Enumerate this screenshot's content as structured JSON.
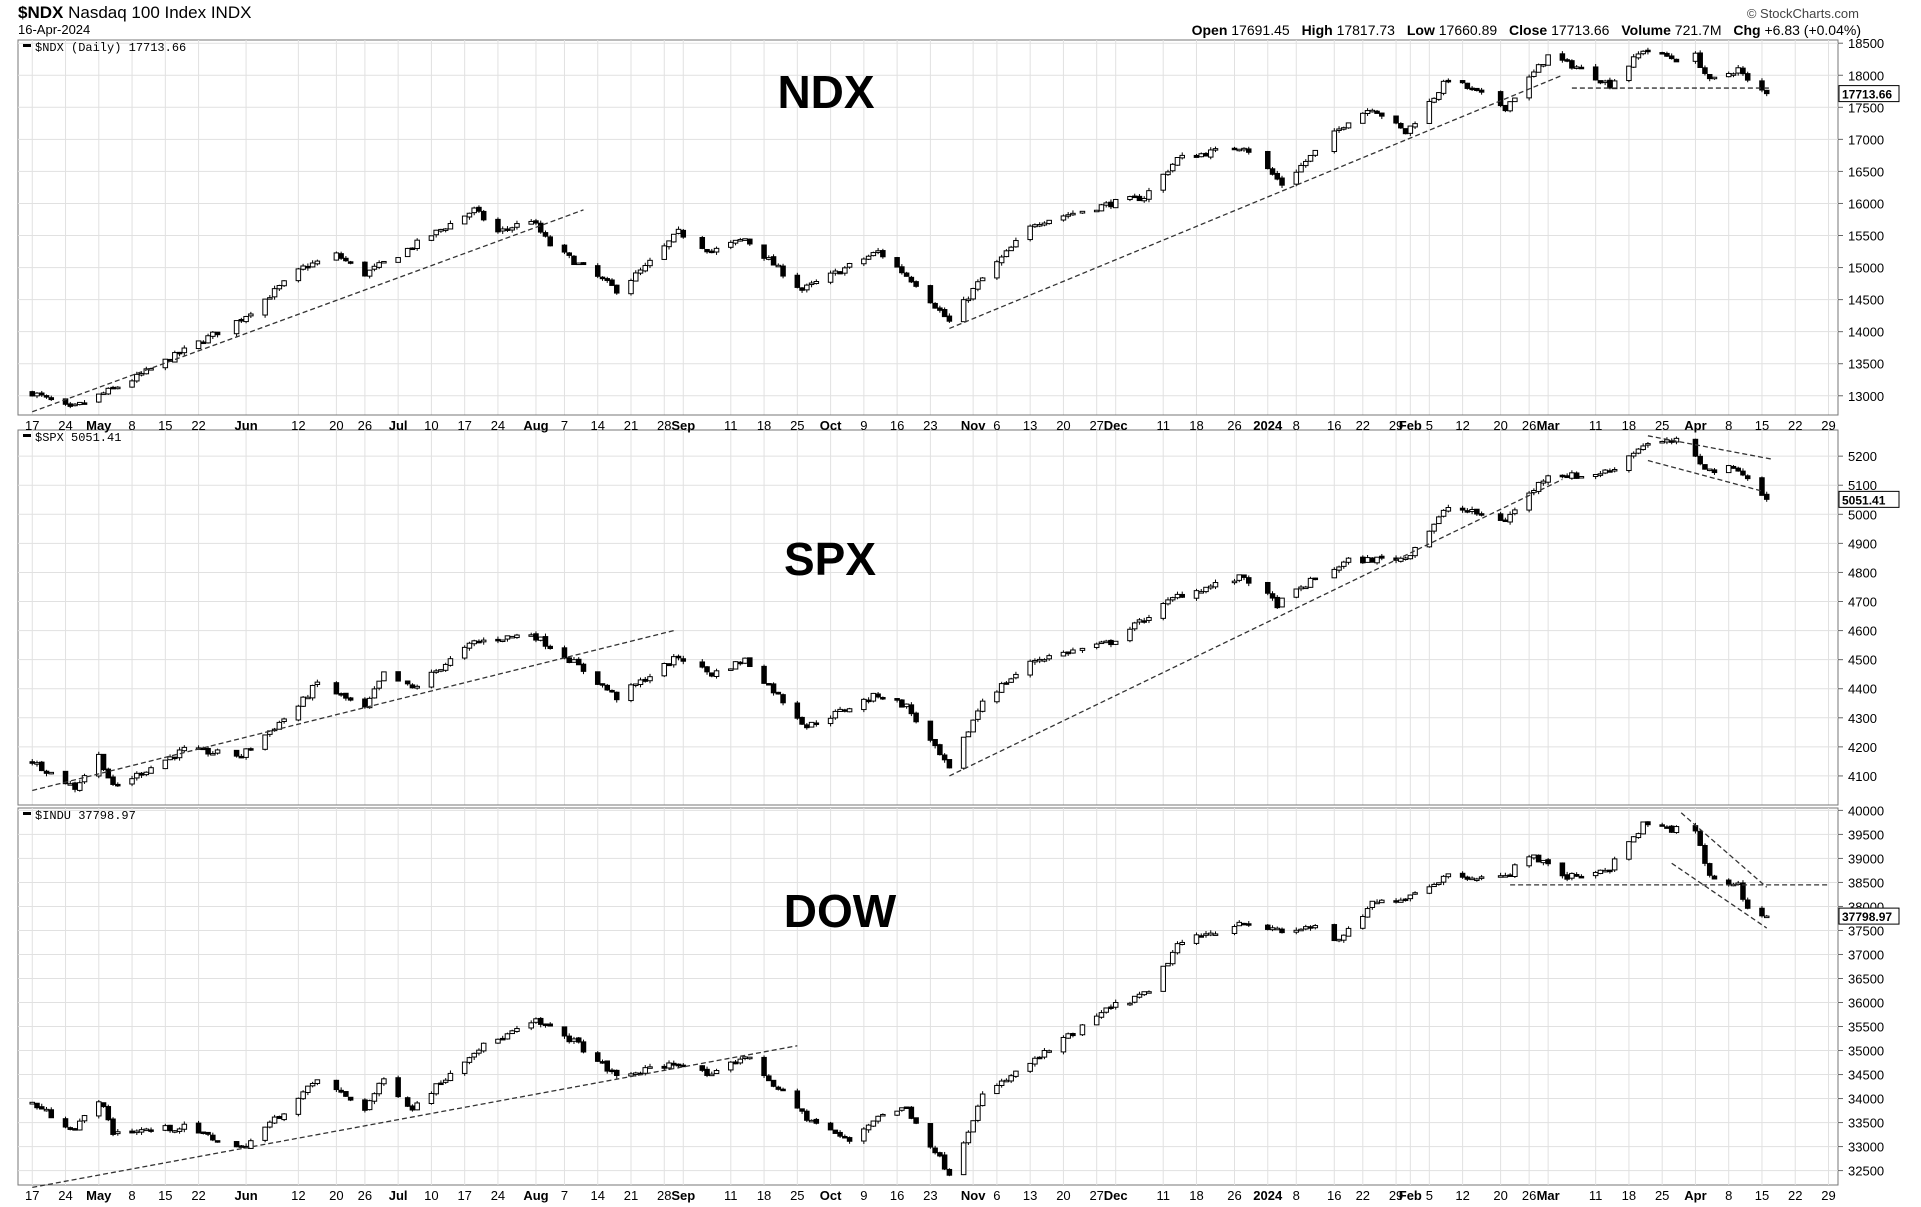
{
  "header": {
    "symbol": "$NDX",
    "name": "Nasdaq 100 Index",
    "exchange": "INDX",
    "date": "16-Apr-2024",
    "brand": "© StockCharts.com",
    "open_label": "Open",
    "open": "17691.45",
    "high_label": "High",
    "high": "17817.73",
    "low_label": "Low",
    "low": "17660.89",
    "close_label": "Close",
    "close": "17713.66",
    "volume_label": "Volume",
    "volume": "721.7M",
    "chg_label": "Chg",
    "chg": "+6.83 (+0.04%)"
  },
  "chart_data": [
    {
      "type": "candlestick",
      "panel_label": "$NDX (Daily) 17713.66",
      "title": "NDX",
      "last_price": "17713.66",
      "ylim": [
        12700,
        18550
      ],
      "yticks": [
        13000,
        13500,
        14000,
        14500,
        15000,
        15500,
        16000,
        16500,
        17000,
        17500,
        18000,
        18500
      ],
      "anchors": [
        [
          "2023-04-17",
          13050
        ],
        [
          "2023-04-25",
          12790
        ],
        [
          "2023-05-08",
          13250
        ],
        [
          "2023-05-31",
          14200
        ],
        [
          "2023-06-13",
          15000
        ],
        [
          "2023-06-20",
          15200
        ],
        [
          "2023-06-26",
          14900
        ],
        [
          "2023-07-03",
          15200
        ],
        [
          "2023-07-19",
          15900
        ],
        [
          "2023-07-24",
          15550
        ],
        [
          "2023-07-31",
          15750
        ],
        [
          "2023-08-04",
          15350
        ],
        [
          "2023-08-18",
          14650
        ],
        [
          "2023-08-24",
          15000
        ],
        [
          "2023-08-31",
          15550
        ],
        [
          "2023-09-07",
          15250
        ],
        [
          "2023-09-14",
          15450
        ],
        [
          "2023-09-26",
          14650
        ],
        [
          "2023-10-12",
          15250
        ],
        [
          "2023-10-20",
          14750
        ],
        [
          "2023-10-27",
          14150
        ],
        [
          "2023-11-02",
          14750
        ],
        [
          "2023-11-14",
          15700
        ],
        [
          "2023-11-30",
          16000
        ],
        [
          "2023-12-07",
          16100
        ],
        [
          "2023-12-14",
          16700
        ],
        [
          "2023-12-28",
          16900
        ],
        [
          "2024-01-05",
          16300
        ],
        [
          "2024-01-12",
          16800
        ],
        [
          "2024-01-19",
          17300
        ],
        [
          "2024-01-24",
          17500
        ],
        [
          "2024-01-31",
          17100
        ],
        [
          "2024-02-09",
          17950
        ],
        [
          "2024-02-21",
          17500
        ],
        [
          "2024-03-01",
          18300
        ],
        [
          "2024-03-08",
          18100
        ],
        [
          "2024-03-14",
          17850
        ],
        [
          "2024-03-21",
          18400
        ],
        [
          "2024-03-28",
          18250
        ],
        [
          "2024-04-01",
          18300
        ],
        [
          "2024-04-04",
          17900
        ],
        [
          "2024-04-10",
          18100
        ],
        [
          "2024-04-12",
          17900
        ],
        [
          "2024-04-16",
          17713.66
        ]
      ],
      "trendlines": [
        [
          [
            "2023-04-17",
            12750
          ],
          [
            "2023-08-11",
            15900
          ]
        ],
        [
          [
            "2023-10-27",
            14050
          ],
          [
            "2024-03-04",
            18000
          ]
        ],
        [
          [
            "2024-03-06",
            17800
          ],
          [
            "2024-04-17",
            17800
          ]
        ]
      ]
    },
    {
      "type": "candlestick",
      "panel_label": "$SPX 5051.41",
      "title": "SPX",
      "last_price": "5051.41",
      "ylim": [
        4000,
        5290
      ],
      "yticks": [
        4100,
        4200,
        4300,
        4400,
        4500,
        4600,
        4700,
        4800,
        4900,
        5000,
        5100,
        5200
      ],
      "anchors": [
        [
          "2023-04-17",
          4150
        ],
        [
          "2023-04-26",
          4060
        ],
        [
          "2023-05-01",
          4170
        ],
        [
          "2023-05-04",
          4060
        ],
        [
          "2023-05-19",
          4190
        ],
        [
          "2023-05-31",
          4170
        ],
        [
          "2023-06-12",
          4340
        ],
        [
          "2023-06-16",
          4420
        ],
        [
          "2023-06-26",
          4330
        ],
        [
          "2023-06-30",
          4450
        ],
        [
          "2023-07-06",
          4400
        ],
        [
          "2023-07-19",
          4560
        ],
        [
          "2023-07-31",
          4590
        ],
        [
          "2023-08-09",
          4490
        ],
        [
          "2023-08-18",
          4370
        ],
        [
          "2023-08-31",
          4510
        ],
        [
          "2023-09-07",
          4450
        ],
        [
          "2023-09-14",
          4500
        ],
        [
          "2023-09-27",
          4270
        ],
        [
          "2023-10-12",
          4380
        ],
        [
          "2023-10-18",
          4340
        ],
        [
          "2023-10-27",
          4120
        ],
        [
          "2023-11-03",
          4360
        ],
        [
          "2023-11-14",
          4500
        ],
        [
          "2023-11-30",
          4560
        ],
        [
          "2023-12-14",
          4720
        ],
        [
          "2023-12-28",
          4785
        ],
        [
          "2024-01-04",
          4690
        ],
        [
          "2024-01-12",
          4780
        ],
        [
          "2024-01-19",
          4840
        ],
        [
          "2024-01-31",
          4850
        ],
        [
          "2024-02-09",
          5025
        ],
        [
          "2024-02-21",
          4980
        ],
        [
          "2024-03-01",
          5140
        ],
        [
          "2024-03-08",
          5130
        ],
        [
          "2024-03-14",
          5150
        ],
        [
          "2024-03-21",
          5240
        ],
        [
          "2024-03-28",
          5250
        ],
        [
          "2024-04-04",
          5150
        ],
        [
          "2024-04-10",
          5160
        ],
        [
          "2024-04-12",
          5120
        ],
        [
          "2024-04-16",
          5051.41
        ]
      ],
      "trendlines": [
        [
          [
            "2023-04-17",
            4050
          ],
          [
            "2023-08-30",
            4600
          ]
        ],
        [
          [
            "2023-10-27",
            4100
          ],
          [
            "2024-03-04",
            5120
          ]
        ],
        [
          [
            "2024-03-22",
            5270
          ],
          [
            "2024-04-17",
            5190
          ]
        ],
        [
          [
            "2024-03-22",
            5185
          ],
          [
            "2024-04-15",
            5080
          ]
        ]
      ]
    },
    {
      "type": "candlestick",
      "panel_label": "$INDU 37798.97",
      "title": "DOW",
      "last_price": "37798.97",
      "ylim": [
        32200,
        40050
      ],
      "yticks": [
        32500,
        33000,
        33500,
        34000,
        34500,
        35000,
        35500,
        36000,
        36500,
        37000,
        37500,
        38000,
        38500,
        39000,
        39500,
        40000
      ],
      "anchors": [
        [
          "2023-04-17",
          33900
        ],
        [
          "2023-04-26",
          33350
        ],
        [
          "2023-05-01",
          34000
        ],
        [
          "2023-05-04",
          33300
        ],
        [
          "2023-05-19",
          33400
        ],
        [
          "2023-05-31",
          32950
        ],
        [
          "2023-06-12",
          34000
        ],
        [
          "2023-06-16",
          34400
        ],
        [
          "2023-06-26",
          33800
        ],
        [
          "2023-06-30",
          34400
        ],
        [
          "2023-07-06",
          33800
        ],
        [
          "2023-07-19",
          35000
        ],
        [
          "2023-08-01",
          35600
        ],
        [
          "2023-08-09",
          35200
        ],
        [
          "2023-08-18",
          34450
        ],
        [
          "2023-08-31",
          34750
        ],
        [
          "2023-09-07",
          34450
        ],
        [
          "2023-09-14",
          34900
        ],
        [
          "2023-09-27",
          33600
        ],
        [
          "2023-10-06",
          33100
        ],
        [
          "2023-10-12",
          33650
        ],
        [
          "2023-10-18",
          33800
        ],
        [
          "2023-10-27",
          32450
        ],
        [
          "2023-11-03",
          34050
        ],
        [
          "2023-11-14",
          34800
        ],
        [
          "2023-11-30",
          35900
        ],
        [
          "2023-12-08",
          36200
        ],
        [
          "2023-12-14",
          37200
        ],
        [
          "2023-12-28",
          37700
        ],
        [
          "2024-01-05",
          37450
        ],
        [
          "2024-01-12",
          37600
        ],
        [
          "2024-01-17",
          37250
        ],
        [
          "2024-01-24",
          38050
        ],
        [
          "2024-01-31",
          38200
        ],
        [
          "2024-02-09",
          38650
        ],
        [
          "2024-02-21",
          38600
        ],
        [
          "2024-02-26",
          39100
        ],
        [
          "2024-03-05",
          38600
        ],
        [
          "2024-03-14",
          38800
        ],
        [
          "2024-03-21",
          39700
        ],
        [
          "2024-03-28",
          39600
        ],
        [
          "2024-04-01",
          39550
        ],
        [
          "2024-04-04",
          38600
        ],
        [
          "2024-04-10",
          38450
        ],
        [
          "2024-04-12",
          37950
        ],
        [
          "2024-04-16",
          37798.97
        ]
      ],
      "trendlines": [
        [
          [
            "2023-04-17",
            32150
          ],
          [
            "2023-09-25",
            35100
          ]
        ],
        [
          [
            "2024-02-22",
            38450
          ],
          [
            "2024-04-29",
            38450
          ]
        ],
        [
          [
            "2024-03-29",
            39950
          ],
          [
            "2024-04-16",
            38400
          ]
        ],
        [
          [
            "2024-03-27",
            38900
          ],
          [
            "2024-04-16",
            37550
          ]
        ]
      ]
    }
  ],
  "x_axis": {
    "range": [
      "2023-04-14",
      "2024-05-01"
    ],
    "ticks": [
      {
        "date": "2023-04-17",
        "label": "17",
        "bold": false
      },
      {
        "date": "2023-04-24",
        "label": "24",
        "bold": false
      },
      {
        "date": "2023-05-01",
        "label": "May",
        "bold": true
      },
      {
        "date": "2023-05-08",
        "label": "8",
        "bold": false
      },
      {
        "date": "2023-05-15",
        "label": "15",
        "bold": false
      },
      {
        "date": "2023-05-22",
        "label": "22",
        "bold": false
      },
      {
        "date": "2023-06-01",
        "label": "Jun",
        "bold": true
      },
      {
        "date": "2023-06-12",
        "label": "12",
        "bold": false
      },
      {
        "date": "2023-06-20",
        "label": "20",
        "bold": false
      },
      {
        "date": "2023-06-26",
        "label": "26",
        "bold": false
      },
      {
        "date": "2023-07-03",
        "label": "Jul",
        "bold": true
      },
      {
        "date": "2023-07-10",
        "label": "10",
        "bold": false
      },
      {
        "date": "2023-07-17",
        "label": "17",
        "bold": false
      },
      {
        "date": "2023-07-24",
        "label": "24",
        "bold": false
      },
      {
        "date": "2023-08-01",
        "label": "Aug",
        "bold": true
      },
      {
        "date": "2023-08-07",
        "label": "7",
        "bold": false
      },
      {
        "date": "2023-08-14",
        "label": "14",
        "bold": false
      },
      {
        "date": "2023-08-21",
        "label": "21",
        "bold": false
      },
      {
        "date": "2023-08-28",
        "label": "28",
        "bold": false
      },
      {
        "date": "2023-09-01",
        "label": "Sep",
        "bold": true
      },
      {
        "date": "2023-09-11",
        "label": "11",
        "bold": false
      },
      {
        "date": "2023-09-18",
        "label": "18",
        "bold": false
      },
      {
        "date": "2023-09-25",
        "label": "25",
        "bold": false
      },
      {
        "date": "2023-10-02",
        "label": "Oct",
        "bold": true
      },
      {
        "date": "2023-10-09",
        "label": "9",
        "bold": false
      },
      {
        "date": "2023-10-16",
        "label": "16",
        "bold": false
      },
      {
        "date": "2023-10-23",
        "label": "23",
        "bold": false
      },
      {
        "date": "2023-11-01",
        "label": "Nov",
        "bold": true
      },
      {
        "date": "2023-11-06",
        "label": "6",
        "bold": false
      },
      {
        "date": "2023-11-13",
        "label": "13",
        "bold": false
      },
      {
        "date": "2023-11-20",
        "label": "20",
        "bold": false
      },
      {
        "date": "2023-11-27",
        "label": "27",
        "bold": false
      },
      {
        "date": "2023-12-01",
        "label": "Dec",
        "bold": true
      },
      {
        "date": "2023-12-11",
        "label": "11",
        "bold": false
      },
      {
        "date": "2023-12-18",
        "label": "18",
        "bold": false
      },
      {
        "date": "2023-12-26",
        "label": "26",
        "bold": false
      },
      {
        "date": "2024-01-02",
        "label": "2024",
        "bold": true
      },
      {
        "date": "2024-01-08",
        "label": "8",
        "bold": false
      },
      {
        "date": "2024-01-16",
        "label": "16",
        "bold": false
      },
      {
        "date": "2024-01-22",
        "label": "22",
        "bold": false
      },
      {
        "date": "2024-01-29",
        "label": "29",
        "bold": false
      },
      {
        "date": "2024-02-01",
        "label": "Feb",
        "bold": true
      },
      {
        "date": "2024-02-05",
        "label": "5",
        "bold": false
      },
      {
        "date": "2024-02-12",
        "label": "12",
        "bold": false
      },
      {
        "date": "2024-02-20",
        "label": "20",
        "bold": false
      },
      {
        "date": "2024-02-26",
        "label": "26",
        "bold": false
      },
      {
        "date": "2024-03-01",
        "label": "Mar",
        "bold": true
      },
      {
        "date": "2024-03-11",
        "label": "11",
        "bold": false
      },
      {
        "date": "2024-03-18",
        "label": "18",
        "bold": false
      },
      {
        "date": "2024-03-25",
        "label": "25",
        "bold": false
      },
      {
        "date": "2024-04-01",
        "label": "Apr",
        "bold": true
      },
      {
        "date": "2024-04-08",
        "label": "8",
        "bold": false
      },
      {
        "date": "2024-04-15",
        "label": "15",
        "bold": false
      },
      {
        "date": "2024-04-22",
        "label": "22",
        "bold": false
      },
      {
        "date": "2024-04-29",
        "label": "29",
        "bold": false
      }
    ]
  }
}
